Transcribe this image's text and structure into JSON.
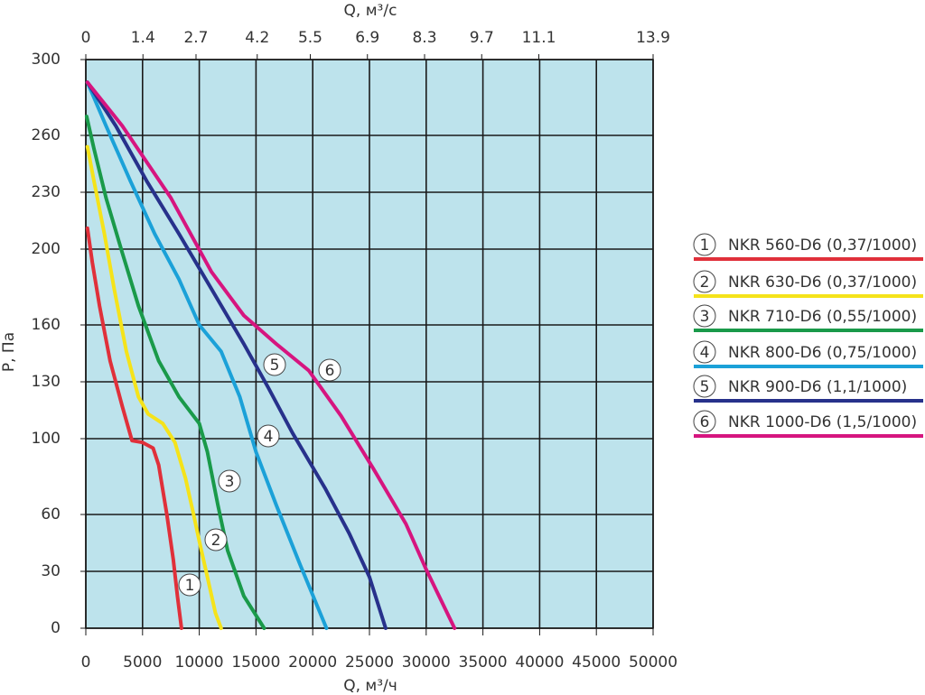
{
  "chart_data": {
    "type": "line",
    "x_label": "Q, м³/ч",
    "x2_label": "Q, м³/с",
    "y_label": "P, Па",
    "xlim": [
      0,
      50000
    ],
    "xticks": [
      0,
      5000,
      10000,
      15000,
      20000,
      25000,
      30000,
      35000,
      40000,
      45000,
      50000
    ],
    "x2lim": [
      0,
      13.9
    ],
    "x2ticks": [
      0,
      1.4,
      2.7,
      4.2,
      5.5,
      6.9,
      8.3,
      9.7,
      11.1,
      13.9
    ],
    "ylim": [
      0,
      300
    ],
    "yticks": [
      0,
      30,
      60,
      100,
      130,
      160,
      200,
      230,
      260,
      300
    ],
    "grid": true,
    "background": "#bde3ec",
    "legend": "right",
    "series": [
      {
        "name": "NKR 560-D6 (0,37/1000)",
        "label": "1",
        "color": "#e0303a",
        "x": [
          143,
          571,
          1214,
          2143,
          3214,
          4071,
          5000,
          5929,
          6429,
          7143,
          7714,
          8071,
          8429
        ],
        "values": [
          211,
          193,
          170,
          141,
          117,
          99,
          98,
          95,
          86,
          60,
          36,
          17,
          0
        ]
      },
      {
        "name": "NKR 630-D6 (0,37/1000)",
        "label": "2",
        "color": "#f5e31a",
        "x": [
          143,
          714,
          1643,
          2500,
          3571,
          4643,
          5500,
          6786,
          7857,
          8786,
          9500,
          10000,
          10714,
          11429,
          11929
        ],
        "values": [
          254,
          236,
          208,
          179,
          146,
          122,
          113,
          108,
          98,
          79,
          60,
          46,
          27,
          8,
          0
        ]
      },
      {
        "name": "NKR 710-D6 (0,55/1000)",
        "label": "3",
        "color": "#1a9a4a",
        "x": [
          71,
          714,
          1786,
          3214,
          4643,
          6429,
          8214,
          10000,
          10714,
          11643,
          12500,
          13929,
          15714
        ],
        "values": [
          270,
          253,
          227,
          198,
          170,
          141,
          122,
          108,
          93,
          65,
          41,
          17,
          0
        ]
      },
      {
        "name": "NKR 800-D6 (0,75/1000)",
        "label": "4",
        "color": "#1ba1d8",
        "x": [
          143,
          1786,
          3929,
          6071,
          8214,
          10000,
          11929,
          13571,
          15000,
          16786,
          18929,
          21214
        ],
        "values": [
          288,
          265,
          236,
          208,
          184,
          160,
          146,
          122,
          93,
          65,
          33,
          0
        ]
      },
      {
        "name": "NKR 900-D6 (1,1/1000)",
        "label": "5",
        "color": "#27318b",
        "x": [
          143,
          2643,
          5357,
          8214,
          11071,
          13929,
          16071,
          18214,
          21071,
          23214,
          25000,
          26429
        ],
        "values": [
          288,
          265,
          236,
          208,
          179,
          150,
          127,
          103,
          74,
          50,
          27,
          0
        ]
      },
      {
        "name": "NKR 1000-D6 (1,5/1000)",
        "label": "6",
        "color": "#d6157f",
        "x": [
          143,
          3214,
          7500,
          11071,
          13929,
          16786,
          19643,
          22500,
          25357,
          28214,
          30000,
          32500
        ],
        "values": [
          288,
          265,
          227,
          188,
          165,
          150,
          136,
          112,
          84,
          55,
          31,
          0
        ]
      }
    ]
  }
}
